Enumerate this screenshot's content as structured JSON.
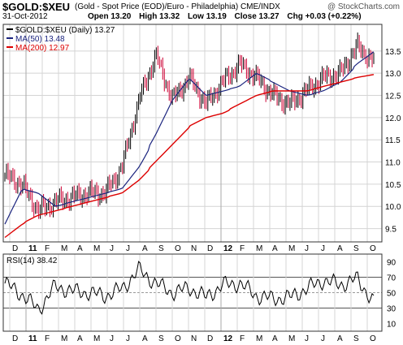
{
  "header": {
    "ticker": "$GOLD:$XEU",
    "description": "(Gold - Spot Price (EOD)/Euro - Philadelphia)  CME/INDX",
    "watermark": "@ StockCharts.com",
    "date": "31-Oct-2012",
    "ohlc": [
      "Open 13.20",
      "High 13.32",
      "Low 13.19",
      "Close 13.27",
      "Chg +0.03 (+0.22%)"
    ]
  },
  "legend": {
    "price": "$GOLD:$XEU (Daily) 13.27",
    "ma50": "MA(50) 13.48",
    "ma200": "MA(200) 12.97"
  },
  "rsi_label": "RSI(14) 38.42",
  "colors": {
    "price": "#000000",
    "down": "#cc0033",
    "ma50": "#1a237e",
    "ma200": "#dd0000",
    "grid": "#d4d4d4",
    "year_line": "#aaaaaa"
  },
  "x_axis_labels": [
    "D",
    "11",
    "F",
    "M",
    "A",
    "M",
    "J",
    "J",
    "A",
    "S",
    "O",
    "N",
    "D",
    "12",
    "F",
    "M",
    "A",
    "M",
    "J",
    "J",
    "A",
    "S",
    "O"
  ],
  "chart_data": [
    {
      "type": "line",
      "title": "$GOLD:$XEU (Daily) 13.27",
      "ylim": [
        9.2,
        14.1
      ],
      "yticks": [
        9.5,
        10.0,
        10.5,
        11.0,
        11.5,
        12.0,
        12.5,
        13.0,
        13.5
      ],
      "x": [
        "Dec 2010",
        "Jan 2011",
        "Feb 2011",
        "Mar 2011",
        "Apr 2011",
        "May 2011",
        "Jun 2011",
        "Jul 2011",
        "Aug 2011",
        "Sep 2011",
        "Oct 2011",
        "Nov 2011",
        "Dec 2011",
        "Jan 2012",
        "Feb 2012",
        "Mar 2012",
        "Apr 2012",
        "May 2012",
        "Jun 2012",
        "Jul 2012",
        "Aug 2012",
        "Sep 2012",
        "Oct 2012"
      ],
      "series": [
        {
          "name": "$GOLD:$XEU (Daily) 13.27",
          "values": [
            10.7,
            10.5,
            9.9,
            10.1,
            10.2,
            10.3,
            10.3,
            10.9,
            12.4,
            13.4,
            12.4,
            12.9,
            12.3,
            12.8,
            13.2,
            12.9,
            12.5,
            12.3,
            12.6,
            12.9,
            13.0,
            13.6,
            13.27
          ]
        },
        {
          "name": "MA(50) 13.48",
          "values": [
            9.6,
            10.4,
            10.3,
            10.0,
            10.1,
            10.2,
            10.3,
            10.4,
            10.9,
            11.6,
            12.4,
            12.9,
            12.5,
            12.6,
            12.7,
            13.0,
            12.8,
            12.6,
            12.5,
            12.6,
            12.8,
            13.2,
            13.48
          ]
        },
        {
          "name": "MA(200) 12.97",
          "values": [
            9.3,
            9.6,
            9.8,
            9.9,
            10.0,
            10.1,
            10.2,
            10.3,
            10.6,
            11.0,
            11.4,
            11.8,
            12.0,
            12.1,
            12.3,
            12.5,
            12.6,
            12.6,
            12.6,
            12.7,
            12.8,
            12.9,
            12.97
          ]
        }
      ]
    },
    {
      "type": "line",
      "title": "RSI(14) 38.42",
      "ylim": [
        0,
        100
      ],
      "yticks": [
        10,
        30,
        50,
        70,
        90
      ],
      "reference_lines": [
        30,
        50,
        70
      ],
      "series": [
        {
          "name": "RSI(14) 38.42",
          "values": [
            62,
            48,
            28,
            58,
            52,
            50,
            46,
            55,
            80,
            62,
            50,
            56,
            44,
            60,
            62,
            46,
            42,
            44,
            55,
            66,
            60,
            68,
            38
          ]
        }
      ]
    }
  ]
}
